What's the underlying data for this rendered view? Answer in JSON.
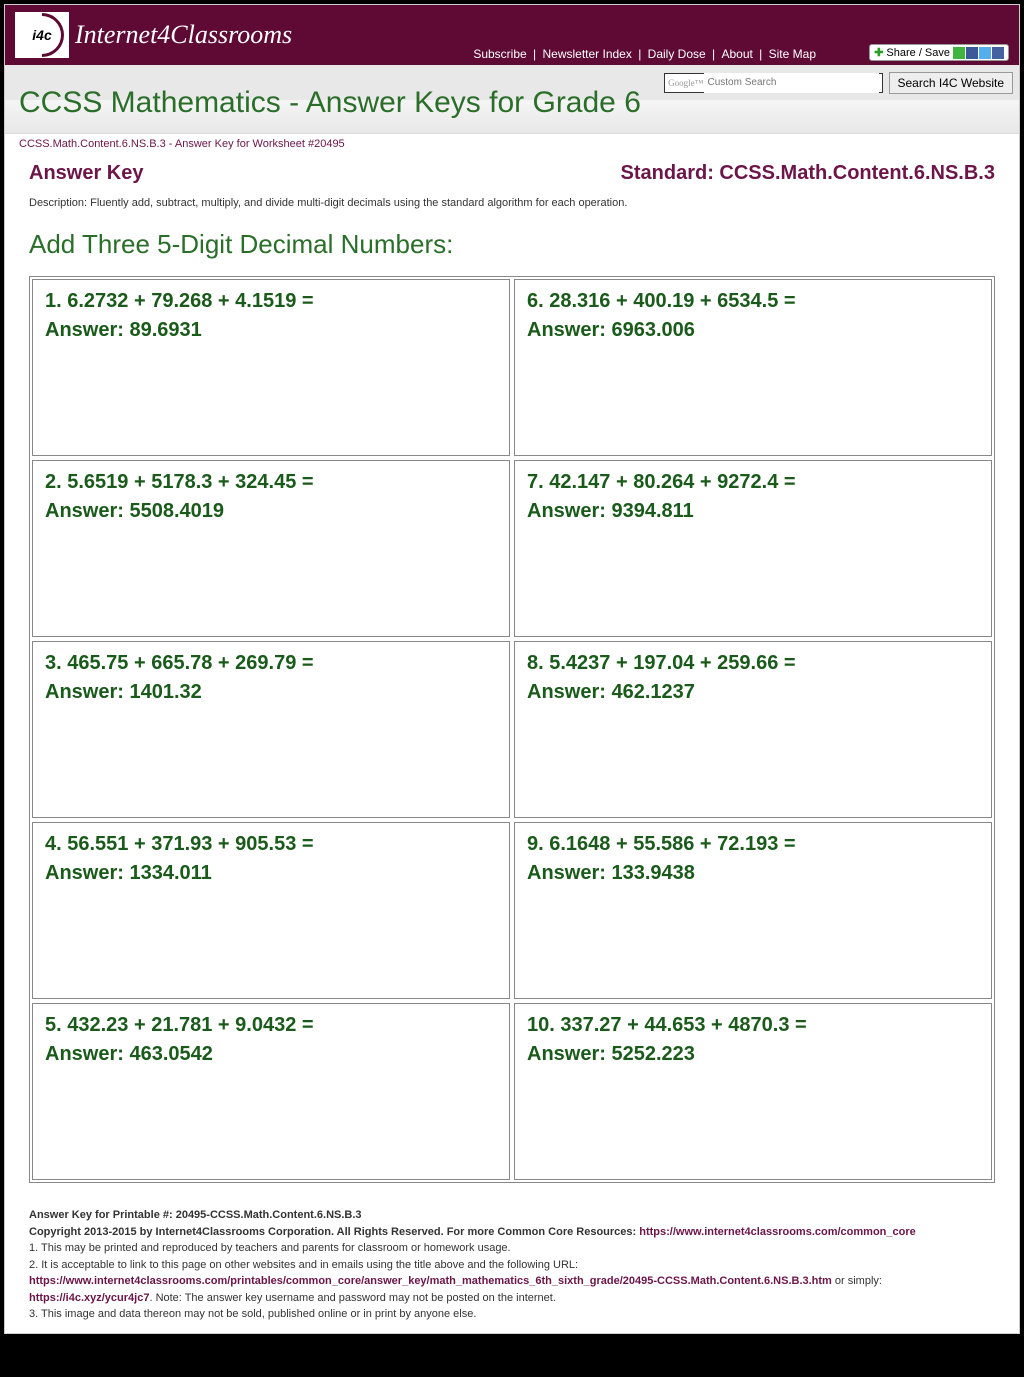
{
  "header": {
    "logo_text": "Internet4Classrooms",
    "logo_badge": "i4c",
    "links": [
      "Subscribe",
      "Newsletter Index",
      "Daily Dose",
      "About",
      "Site Map"
    ],
    "share_label": "Share / Save"
  },
  "search": {
    "placeholder": "Custom Search",
    "google_prefix": "Google™",
    "button": "Search I4C Website"
  },
  "page_title": "CCSS Mathematics - Answer Keys for Grade 6",
  "breadcrumb": "CCSS.Math.Content.6.NS.B.3 - Answer Key for Worksheet #20495",
  "answer_key_label": "Answer Key",
  "standard_label": "Standard: CCSS.Math.Content.6.NS.B.3",
  "description": "Description: Fluently add, subtract, multiply, and divide multi-digit decimals using the standard algorithm for each operation.",
  "section_title": "Add Three 5-Digit Decimal Numbers:",
  "problems": [
    {
      "n": "1",
      "q": "6.2732 + 79.268 + 4.1519 =",
      "a": "89.6931"
    },
    {
      "n": "6",
      "q": "28.316 + 400.19 + 6534.5 =",
      "a": "6963.006"
    },
    {
      "n": "2",
      "q": "5.6519 + 5178.3 + 324.45 =",
      "a": "5508.4019"
    },
    {
      "n": "7",
      "q": "42.147 + 80.264 + 9272.4 =",
      "a": "9394.811"
    },
    {
      "n": "3",
      "q": "465.75 + 665.78 + 269.79 =",
      "a": "1401.32"
    },
    {
      "n": "8",
      "q": "5.4237 + 197.04 + 259.66 =",
      "a": "462.1237"
    },
    {
      "n": "4",
      "q": "56.551 + 371.93 + 905.53 =",
      "a": "1334.011"
    },
    {
      "n": "9",
      "q": "6.1648 + 55.586 + 72.193 =",
      "a": "133.9438"
    },
    {
      "n": "5",
      "q": "432.23 + 21.781 + 9.0432 =",
      "a": "463.0542"
    },
    {
      "n": "10",
      "q": "337.27 + 44.653 + 4870.3 =",
      "a": "5252.223"
    }
  ],
  "answer_prefix": "Answer: ",
  "footer": {
    "line1": "Answer Key for Printable #: 20495-CCSS.Math.Content.6.NS.B.3",
    "copyright": "Copyright 2013-2015 by Internet4Classrooms Corporation. All Rights Reserved. For more Common Core Resources: ",
    "cc_link": "https://www.internet4classrooms.com/common_core",
    "note1": "1. This may be printed and reproduced by teachers and parents for classroom or homework usage.",
    "note2": "2. It is acceptable to link to this page on other websites and in emails using the title above and the following URL:",
    "url1": "https://www.internet4classrooms.com/printables/common_core/answer_key/math_mathematics_6th_sixth_grade/20495-CCSS.Math.Content.6.NS.B.3.htm",
    "or_simply": " or simply: ",
    "url2": "https://i4c.xyz/ycur4jc7",
    "note2b": ". Note: The answer key username and password may not be posted on the internet.",
    "note3": "3. This image and data thereon may not be sold, published online or in print by anyone else."
  }
}
